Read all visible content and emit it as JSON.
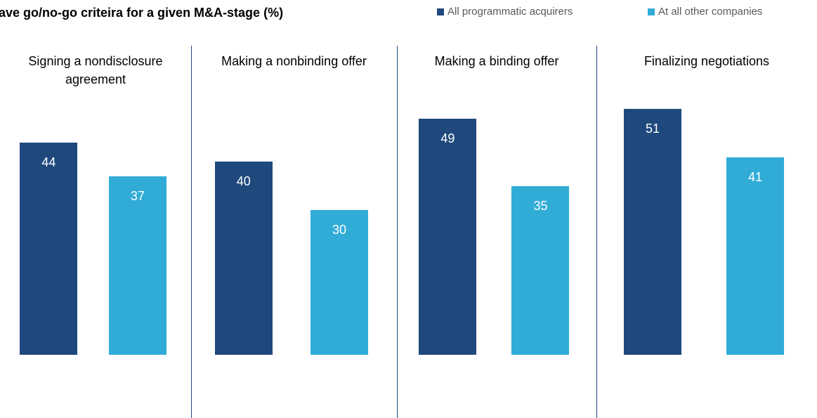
{
  "chart_data": {
    "type": "bar",
    "title": "ave go/no-go criteira for a given M&A-stage (%)",
    "categories": [
      "Signing a nondisclosure agreement",
      "Making a nonbinding offer",
      "Making a binding offer",
      "Finalizing negotiations"
    ],
    "series": [
      {
        "name": "All programmatic acquirers",
        "color": "#1f497d",
        "values": [
          44,
          40,
          49,
          51
        ]
      },
      {
        "name": "At all other companies",
        "color": "#31acd7",
        "values": [
          37,
          30,
          35,
          41
        ]
      }
    ]
  }
}
